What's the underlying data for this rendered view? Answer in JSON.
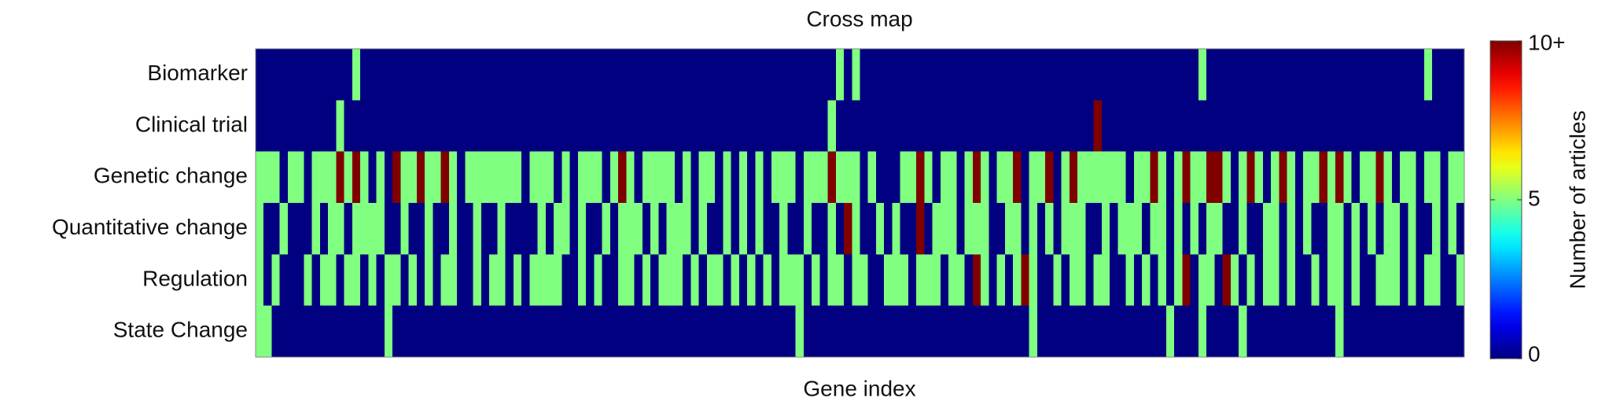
{
  "chart_data": {
    "type": "heatmap",
    "title": "Cross map",
    "xlabel": "Gene index",
    "colormap": "jet",
    "rows": [
      "Biomarker",
      "Clinical trial",
      "Genetic change",
      "Quantitative change",
      "Regulation",
      "State Change"
    ],
    "zlim": [
      0,
      10
    ],
    "colorbar_label": "Number of articles",
    "colorbar_ticks": [
      0,
      5,
      {
        "value": 10,
        "label": "10+"
      }
    ],
    "z": [
      [
        0,
        0,
        0,
        0,
        0,
        0,
        0,
        0,
        0,
        0,
        0,
        0,
        5,
        0,
        0,
        0,
        0,
        0,
        0,
        0,
        0,
        0,
        0,
        0,
        0,
        0,
        0,
        0,
        0,
        0,
        0,
        0,
        0,
        0,
        0,
        0,
        0,
        0,
        0,
        0,
        0,
        0,
        0,
        0,
        0,
        0,
        0,
        0,
        0,
        0,
        0,
        0,
        0,
        0,
        0,
        0,
        0,
        0,
        0,
        0,
        0,
        0,
        0,
        0,
        0,
        0,
        0,
        0,
        0,
        0,
        0,
        0,
        5,
        0,
        5,
        0,
        0,
        0,
        0,
        0,
        0,
        0,
        0,
        0,
        0,
        0,
        0,
        0,
        0,
        0,
        0,
        0,
        0,
        0,
        0,
        0,
        0,
        0,
        0,
        0,
        0,
        0,
        0,
        0,
        0,
        0,
        0,
        0,
        0,
        0,
        0,
        0,
        0,
        0,
        0,
        0,
        0,
        5,
        0,
        0,
        0,
        0,
        0,
        0,
        0,
        0,
        0,
        0,
        0,
        0,
        0,
        0,
        0,
        0,
        0,
        0,
        0,
        0,
        0,
        0,
        0,
        0,
        0,
        0,
        0,
        5,
        0,
        0,
        0,
        0
      ],
      [
        0,
        0,
        0,
        0,
        0,
        0,
        0,
        0,
        0,
        0,
        5,
        0,
        0,
        0,
        0,
        0,
        0,
        0,
        0,
        0,
        0,
        0,
        0,
        0,
        0,
        0,
        0,
        0,
        0,
        0,
        0,
        0,
        0,
        0,
        0,
        0,
        0,
        0,
        0,
        0,
        0,
        0,
        0,
        0,
        0,
        0,
        0,
        0,
        0,
        0,
        0,
        0,
        0,
        0,
        0,
        0,
        0,
        0,
        0,
        0,
        0,
        0,
        0,
        0,
        0,
        0,
        0,
        0,
        0,
        0,
        0,
        5,
        0,
        0,
        0,
        0,
        0,
        0,
        0,
        0,
        0,
        0,
        0,
        0,
        0,
        0,
        0,
        0,
        0,
        0,
        0,
        0,
        0,
        0,
        0,
        0,
        0,
        0,
        0,
        0,
        0,
        0,
        0,
        0,
        10,
        0,
        0,
        0,
        0,
        0,
        0,
        0,
        0,
        0,
        0,
        0,
        0,
        0,
        0,
        0,
        0,
        0,
        0,
        0,
        0,
        0,
        0,
        0,
        0,
        0,
        0,
        0,
        0,
        0,
        0,
        0,
        0,
        0,
        0,
        0,
        0,
        0,
        0,
        0,
        0,
        0,
        0,
        0,
        0,
        0
      ],
      [
        5,
        5,
        5,
        0,
        5,
        5,
        0,
        5,
        5,
        5,
        10,
        5,
        10,
        5,
        0,
        5,
        0,
        10,
        5,
        5,
        10,
        5,
        5,
        10,
        5,
        0,
        5,
        5,
        5,
        5,
        5,
        5,
        5,
        0,
        5,
        5,
        5,
        0,
        5,
        0,
        5,
        5,
        5,
        0,
        5,
        10,
        5,
        0,
        5,
        5,
        5,
        5,
        0,
        5,
        0,
        5,
        5,
        0,
        5,
        0,
        5,
        0,
        5,
        0,
        5,
        5,
        5,
        0,
        5,
        5,
        5,
        10,
        5,
        5,
        5,
        0,
        5,
        0,
        0,
        0,
        5,
        5,
        10,
        5,
        0,
        5,
        5,
        0,
        5,
        10,
        5,
        0,
        5,
        5,
        10,
        0,
        5,
        5,
        10,
        0,
        5,
        10,
        5,
        5,
        5,
        5,
        5,
        5,
        0,
        5,
        5,
        10,
        5,
        0,
        5,
        10,
        5,
        5,
        10,
        10,
        5,
        0,
        5,
        10,
        5,
        0,
        5,
        10,
        5,
        0,
        5,
        5,
        10,
        5,
        10,
        5,
        0,
        5,
        5,
        10,
        5,
        0,
        5,
        5,
        0,
        5,
        5,
        0,
        5,
        5
      ],
      [
        5,
        0,
        0,
        5,
        0,
        0,
        0,
        5,
        0,
        5,
        5,
        0,
        5,
        5,
        5,
        5,
        0,
        0,
        5,
        0,
        0,
        5,
        0,
        0,
        5,
        0,
        0,
        5,
        0,
        0,
        5,
        0,
        0,
        0,
        0,
        5,
        0,
        5,
        5,
        0,
        5,
        0,
        0,
        5,
        0,
        5,
        5,
        5,
        0,
        5,
        0,
        5,
        5,
        5,
        0,
        5,
        0,
        0,
        5,
        0,
        5,
        0,
        5,
        0,
        0,
        5,
        0,
        0,
        5,
        0,
        0,
        5,
        0,
        10,
        5,
        0,
        0,
        5,
        0,
        5,
        0,
        0,
        10,
        0,
        5,
        5,
        5,
        0,
        5,
        5,
        5,
        0,
        0,
        5,
        5,
        0,
        5,
        0,
        5,
        0,
        5,
        5,
        5,
        0,
        0,
        5,
        0,
        5,
        5,
        5,
        0,
        5,
        5,
        0,
        5,
        0,
        5,
        0,
        5,
        5,
        0,
        0,
        5,
        0,
        0,
        5,
        5,
        0,
        5,
        0,
        5,
        0,
        0,
        5,
        5,
        0,
        5,
        0,
        5,
        0,
        5,
        5,
        0,
        5,
        0,
        0,
        5,
        0,
        5,
        0
      ],
      [
        5,
        0,
        5,
        0,
        0,
        0,
        5,
        0,
        5,
        5,
        0,
        5,
        5,
        0,
        5,
        0,
        5,
        5,
        0,
        5,
        0,
        5,
        0,
        5,
        5,
        0,
        0,
        5,
        0,
        5,
        5,
        0,
        5,
        0,
        5,
        5,
        5,
        5,
        0,
        0,
        5,
        0,
        5,
        0,
        0,
        5,
        5,
        0,
        5,
        0,
        5,
        5,
        5,
        0,
        5,
        0,
        5,
        5,
        0,
        5,
        0,
        5,
        0,
        5,
        0,
        5,
        5,
        5,
        0,
        5,
        0,
        5,
        5,
        0,
        5,
        5,
        0,
        0,
        5,
        5,
        5,
        0,
        5,
        5,
        5,
        0,
        5,
        5,
        0,
        10,
        5,
        0,
        5,
        0,
        5,
        10,
        5,
        0,
        0,
        5,
        0,
        5,
        5,
        0,
        5,
        5,
        0,
        0,
        5,
        0,
        5,
        0,
        5,
        0,
        5,
        10,
        0,
        5,
        5,
        0,
        10,
        5,
        0,
        5,
        0,
        5,
        5,
        0,
        5,
        0,
        0,
        5,
        0,
        5,
        5,
        0,
        5,
        0,
        0,
        5,
        5,
        5,
        0,
        5,
        0,
        5,
        5,
        0,
        0,
        5
      ],
      [
        5,
        5,
        0,
        0,
        0,
        0,
        0,
        0,
        0,
        0,
        0,
        0,
        0,
        0,
        0,
        0,
        5,
        0,
        0,
        0,
        0,
        0,
        0,
        0,
        0,
        0,
        0,
        0,
        0,
        0,
        0,
        0,
        0,
        0,
        0,
        0,
        0,
        0,
        0,
        0,
        0,
        0,
        0,
        0,
        0,
        0,
        0,
        0,
        0,
        0,
        0,
        0,
        0,
        0,
        0,
        0,
        0,
        0,
        0,
        0,
        0,
        0,
        0,
        0,
        0,
        0,
        0,
        5,
        0,
        0,
        0,
        0,
        0,
        0,
        0,
        0,
        0,
        0,
        0,
        0,
        0,
        0,
        0,
        0,
        0,
        0,
        0,
        0,
        0,
        0,
        0,
        0,
        0,
        0,
        0,
        0,
        5,
        0,
        0,
        0,
        0,
        0,
        0,
        0,
        0,
        0,
        0,
        0,
        0,
        0,
        0,
        0,
        0,
        5,
        0,
        0,
        0,
        5,
        0,
        0,
        0,
        0,
        5,
        0,
        0,
        0,
        0,
        0,
        0,
        0,
        0,
        0,
        0,
        0,
        5,
        0,
        0,
        0,
        0,
        0,
        0,
        0,
        0,
        0,
        0,
        0,
        0,
        0,
        0,
        0
      ]
    ]
  }
}
